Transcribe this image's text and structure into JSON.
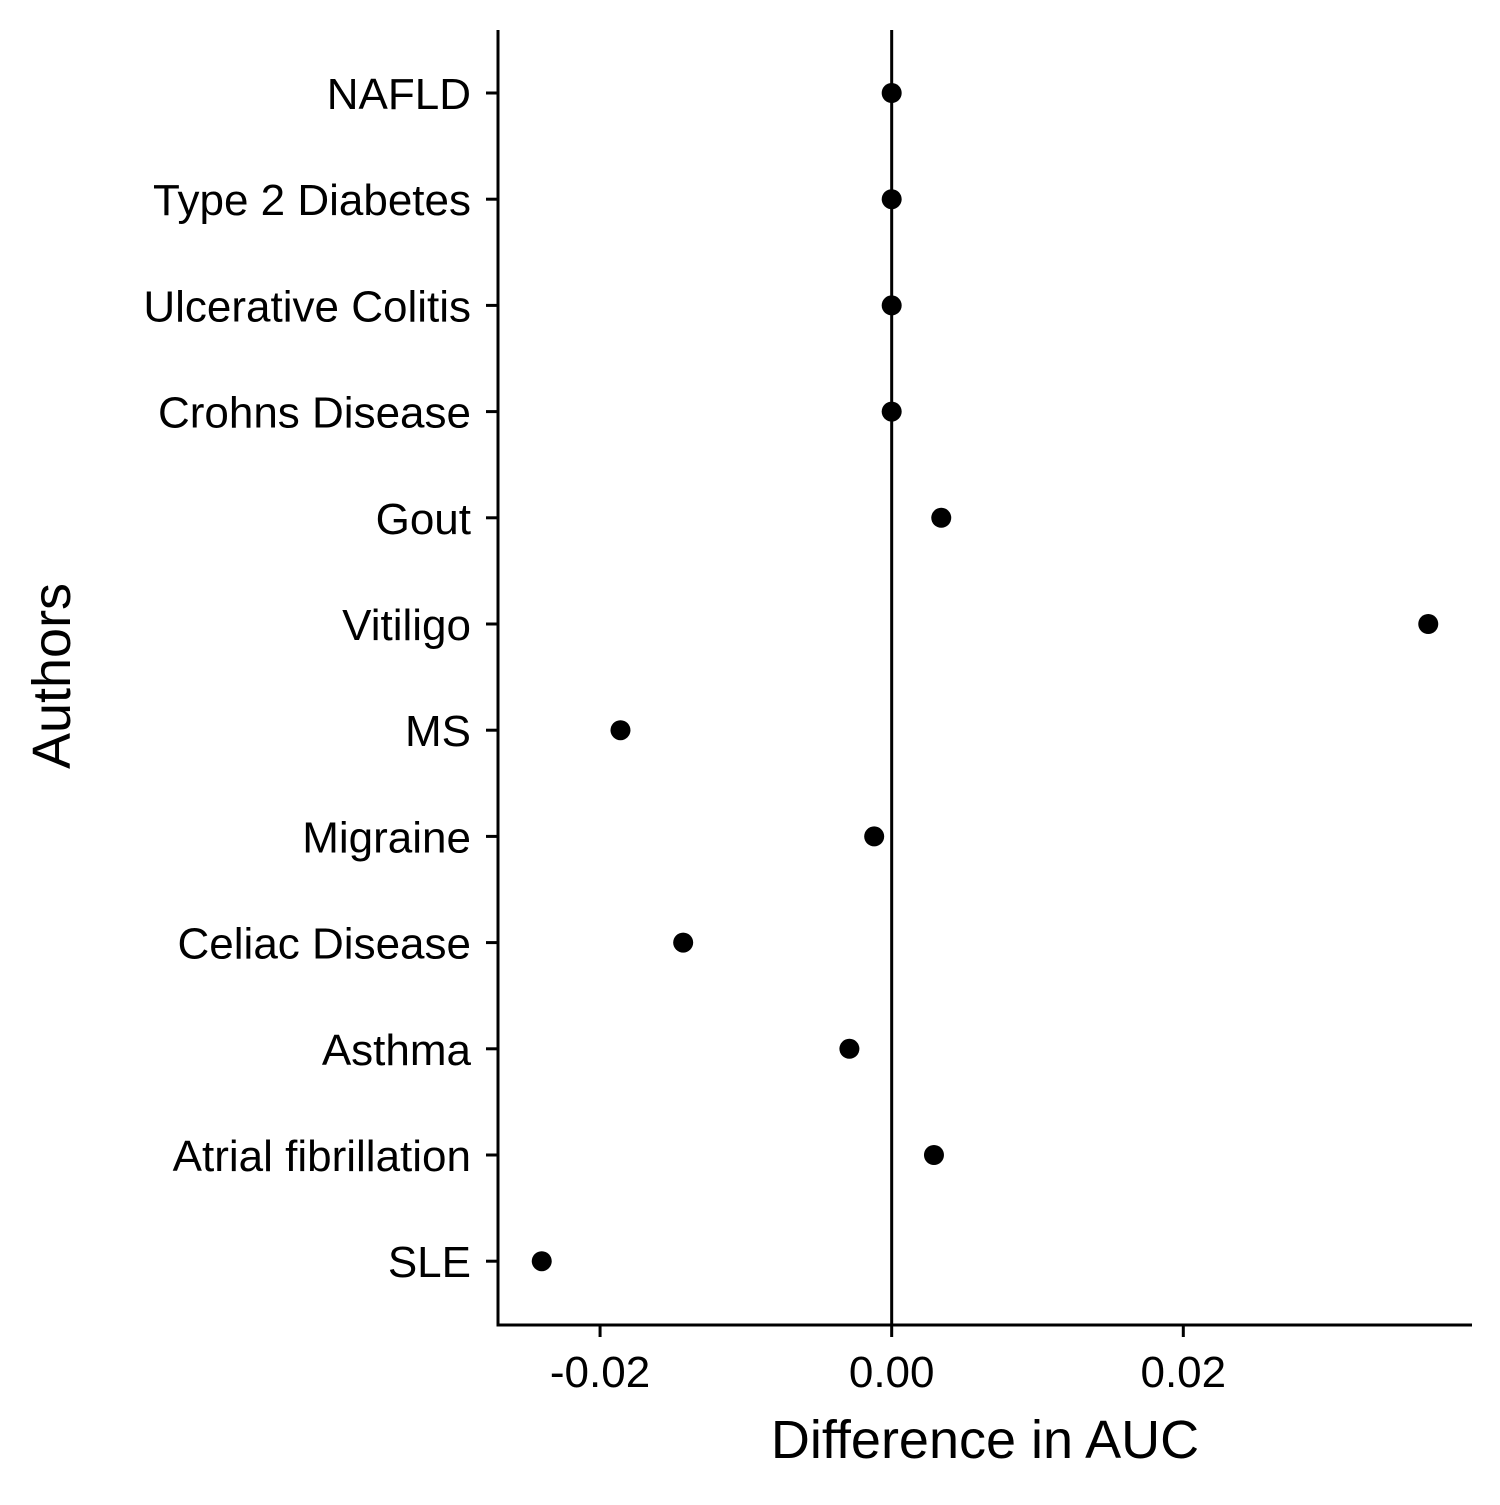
{
  "chart_data": {
    "type": "scatter",
    "title": "",
    "xlabel": "Difference in AUC",
    "ylabel": "Authors",
    "xlim": [
      -0.027,
      0.0398
    ],
    "x_ticks": [
      -0.02,
      0.0,
      0.02
    ],
    "x_tick_labels": [
      "-0.02",
      "0.00",
      "0.02"
    ],
    "reference_line_x": 0.0,
    "grid": false,
    "legend": "none",
    "point_color": "#000000",
    "categories": [
      "NAFLD",
      "Type 2 Diabetes",
      "Ulcerative Colitis",
      "Crohns Disease",
      "Gout",
      "Vitiligo",
      "MS",
      "Migraine",
      "Celiac Disease",
      "Asthma",
      "Atrial fibrillation",
      "SLE"
    ],
    "values": [
      0.0,
      0.0,
      0.0,
      0.0,
      0.0034,
      0.0368,
      -0.0186,
      -0.0012,
      -0.0143,
      -0.0029,
      0.0029,
      -0.024
    ]
  }
}
